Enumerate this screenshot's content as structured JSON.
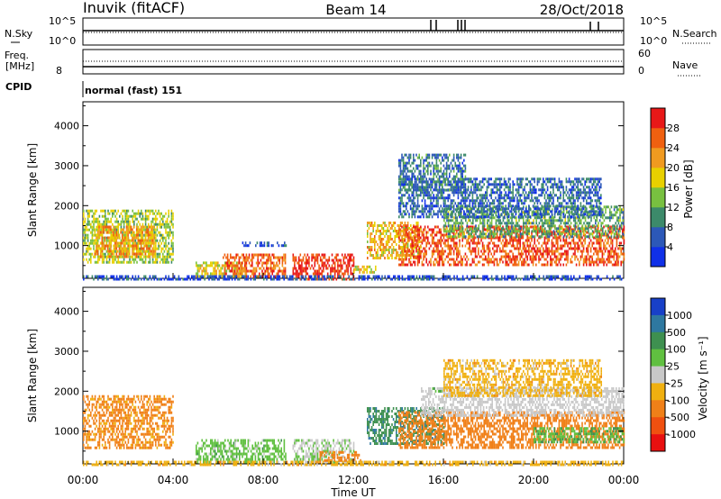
{
  "header": {
    "station": "Inuvik (fitACF)",
    "beam": "Beam 14",
    "date": "28/Oct/2018"
  },
  "status_panels": {
    "nsky_label": "N.Sky",
    "nsky_ticks": [
      "10^5",
      "10^0"
    ],
    "nsearch_label": "N.Search",
    "nsearch_ticks": [
      "10^5",
      "10^0"
    ],
    "freq_label_1": "Freq.",
    "freq_label_2": "[MHz]",
    "freq_ticks": [
      "8"
    ],
    "nave_label": "Nave",
    "nave_ticks": [
      "60",
      "0"
    ],
    "cpid_label": "CPID",
    "cpid_value": "normal (fast) 151"
  },
  "chart_data": [
    {
      "type": "heatmap",
      "name": "power",
      "ylabel": "Slant Range [km]",
      "xlabel": "",
      "x_ticks": [
        "00:00",
        "04:00",
        "08:00",
        "12:00",
        "16:00",
        "20:00",
        "00:00"
      ],
      "xlim_hours": [
        0,
        24
      ],
      "ylim_km": [
        180,
        4600
      ],
      "y_ticks": [
        1000,
        2000,
        3000,
        4000
      ],
      "colorbar": {
        "label": "Power [dB]",
        "ticks": [
          "4",
          "8",
          "12",
          "16",
          "20",
          "24",
          "28"
        ],
        "colors": [
          "#1030e8",
          "#2c58b8",
          "#3c8a6a",
          "#78c040",
          "#e8d000",
          "#f09a20",
          "#f06010",
          "#e81818"
        ]
      },
      "regions": [
        {
          "t": [
            0.0,
            4.0
          ],
          "r": [
            600,
            1900
          ],
          "v": 15
        },
        {
          "t": [
            0.5,
            3.2
          ],
          "r": [
            700,
            1500
          ],
          "v": 22
        },
        {
          "t": [
            5.0,
            7.2
          ],
          "r": [
            250,
            600
          ],
          "v": 18
        },
        {
          "t": [
            6.2,
            9.0
          ],
          "r": [
            250,
            800
          ],
          "v": 26
        },
        {
          "t": [
            7.0,
            9.0
          ],
          "r": [
            1000,
            1100
          ],
          "v": 6
        },
        {
          "t": [
            9.3,
            12.0
          ],
          "r": [
            180,
            800
          ],
          "v": 29
        },
        {
          "t": [
            12.0,
            13.0
          ],
          "r": [
            350,
            500
          ],
          "v": 18
        },
        {
          "t": [
            12.6,
            15.0
          ],
          "r": [
            700,
            1600
          ],
          "v": 20
        },
        {
          "t": [
            14.0,
            24.0
          ],
          "r": [
            500,
            1500
          ],
          "v": 27
        },
        {
          "t": [
            16.0,
            24.0
          ],
          "r": [
            1200,
            2000
          ],
          "v": 12
        },
        {
          "t": [
            14.0,
            23.0
          ],
          "r": [
            1700,
            2700
          ],
          "v": 7
        },
        {
          "t": [
            14.0,
            17.0
          ],
          "r": [
            2400,
            3300
          ],
          "v": 8
        },
        {
          "t": [
            0.0,
            24.0
          ],
          "r": [
            180,
            260
          ],
          "v": 5
        }
      ]
    },
    {
      "type": "heatmap",
      "name": "velocity",
      "ylabel": "Slant Range [km]",
      "xlabel": "Time UT",
      "x_ticks": [
        "00:00",
        "04:00",
        "08:00",
        "12:00",
        "16:00",
        "20:00",
        "00:00"
      ],
      "xlim_hours": [
        0,
        24
      ],
      "ylim_km": [
        180,
        4600
      ],
      "y_ticks": [
        1000,
        2000,
        3000,
        4000
      ],
      "colorbar": {
        "label": "Velocity [m s⁻¹]",
        "ticks": [
          "1000",
          "500",
          "100",
          "25",
          "-25",
          "-100",
          "-500",
          "-1000"
        ],
        "colors": [
          "#1840c8",
          "#2e78a0",
          "#3e9050",
          "#60c040",
          "#c8c8c8",
          "#f0b010",
          "#f08018",
          "#f05010",
          "#e81010"
        ]
      },
      "regions": [
        {
          "t": [
            0.0,
            4.0
          ],
          "r": [
            600,
            1900
          ],
          "v": -150
        },
        {
          "t": [
            5.0,
            9.0
          ],
          "r": [
            250,
            800
          ],
          "v": 60
        },
        {
          "t": [
            9.3,
            12.0
          ],
          "r": [
            250,
            800
          ],
          "v": 20
        },
        {
          "t": [
            10.5,
            12.3
          ],
          "r": [
            250,
            500
          ],
          "v": -180
        },
        {
          "t": [
            12.6,
            16.0
          ],
          "r": [
            700,
            1600
          ],
          "v": 400
        },
        {
          "t": [
            14.0,
            24.0
          ],
          "r": [
            600,
            1500
          ],
          "v": -250
        },
        {
          "t": [
            20.0,
            24.0
          ],
          "r": [
            700,
            1100
          ],
          "v": 80
        },
        {
          "t": [
            15.0,
            24.0
          ],
          "r": [
            1400,
            2100
          ],
          "v": 0
        },
        {
          "t": [
            16.0,
            23.0
          ],
          "r": [
            1900,
            2800
          ],
          "v": -60
        },
        {
          "t": [
            15.5,
            16.0
          ],
          "r": [
            2000,
            2100
          ],
          "v": 90
        },
        {
          "t": [
            0.0,
            24.0
          ],
          "r": [
            180,
            260
          ],
          "v": -60
        }
      ]
    }
  ]
}
